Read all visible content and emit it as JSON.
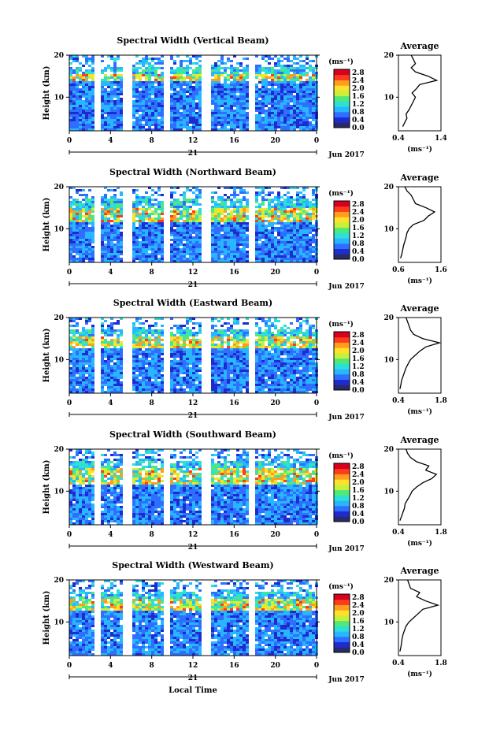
{
  "figure": {
    "xlabel_bottom": "Local Time",
    "colorbar_unit": "(ms⁻¹)",
    "colorbar_ticks": [
      "2.8",
      "2.4",
      "2.0",
      "1.6",
      "1.2",
      "0.8",
      "0.4",
      "0.0"
    ],
    "colorbar_colors": [
      "#2a2a66",
      "#1e2ccf",
      "#2f6fff",
      "#27b6ff",
      "#2de0d6",
      "#4fe87a",
      "#c8f03a",
      "#ffe02a",
      "#ff9d1e",
      "#ff3b1e",
      "#d8001e"
    ],
    "date_label": "21",
    "month_label": "Jun 2017",
    "avg_title": "Average",
    "avg_xlabel": "(ms⁻¹)",
    "ylabel": "Height (km)",
    "y_ticks": [
      "20",
      "10"
    ],
    "x_ticks": [
      "0",
      "4",
      "8",
      "12",
      "16",
      "20",
      "0"
    ]
  },
  "chart_data": [
    {
      "type": "heatmap",
      "title": "Spectral Width (Vertical Beam)",
      "xlabel": "Local Time",
      "ylabel": "Height (km)",
      "xlim": [
        0,
        24
      ],
      "ylim": [
        2,
        20
      ],
      "colorbar": {
        "label": "(ms⁻¹)",
        "range": [
          0.0,
          2.8
        ]
      },
      "data_gaps_hours": [
        [
          2.6,
          3.0
        ],
        [
          5.2,
          5.4
        ],
        [
          5.8,
          6.0
        ],
        [
          9.3,
          9.7
        ],
        [
          13.1,
          13.5
        ],
        [
          17.6,
          17.9
        ]
      ],
      "high_layer_km": [
        14,
        16
      ],
      "average_profile": {
        "title": "Average",
        "xlabel": "(ms⁻¹)",
        "xlim": [
          0.4,
          1.4
        ],
        "x_ticks": [
          "0.4",
          "1.4"
        ],
        "height_km": [
          3,
          4,
          5,
          6,
          7,
          8,
          9,
          10,
          11,
          12,
          13,
          14,
          15,
          16,
          17,
          18,
          19,
          20
        ],
        "width": [
          0.5,
          0.55,
          0.6,
          0.58,
          0.65,
          0.7,
          0.75,
          0.8,
          0.72,
          0.82,
          0.9,
          1.3,
          1.1,
          0.8,
          0.7,
          0.8,
          0.75,
          0.7
        ]
      }
    },
    {
      "type": "heatmap",
      "title": "Spectral Width (Northward Beam)",
      "xlabel": "Local Time",
      "ylabel": "Height (km)",
      "xlim": [
        0,
        24
      ],
      "ylim": [
        2,
        20
      ],
      "colorbar": {
        "label": "(ms⁻¹)",
        "range": [
          0.0,
          2.8
        ]
      },
      "data_gaps_hours": [
        [
          2.6,
          3.0
        ],
        [
          5.2,
          5.4
        ],
        [
          5.8,
          6.0
        ],
        [
          9.3,
          9.7
        ],
        [
          13.1,
          13.5
        ],
        [
          17.6,
          17.9
        ]
      ],
      "high_layer_km": [
        12,
        15
      ],
      "average_profile": {
        "title": "Average",
        "xlabel": "(ms⁻¹)",
        "xlim": [
          0.6,
          1.6
        ],
        "x_ticks": [
          "0.6",
          "1.6"
        ],
        "height_km": [
          3,
          4,
          5,
          6,
          7,
          8,
          9,
          10,
          11,
          12,
          13,
          14,
          15,
          16,
          17,
          18,
          19,
          20
        ],
        "width": [
          0.65,
          0.68,
          0.7,
          0.72,
          0.75,
          0.78,
          0.8,
          0.85,
          0.95,
          1.2,
          1.3,
          1.45,
          1.25,
          1.0,
          0.95,
          0.9,
          0.8,
          0.75
        ]
      }
    },
    {
      "type": "heatmap",
      "title": "Spectral Width (Eastward Beam)",
      "xlabel": "Local Time",
      "ylabel": "Height (km)",
      "xlim": [
        0,
        24
      ],
      "ylim": [
        2,
        20
      ],
      "colorbar": {
        "label": "(ms⁻¹)",
        "range": [
          0.0,
          2.8
        ]
      },
      "data_gaps_hours": [
        [
          2.6,
          3.0
        ],
        [
          5.2,
          5.4
        ],
        [
          5.8,
          6.0
        ],
        [
          9.3,
          9.7
        ],
        [
          13.1,
          13.5
        ],
        [
          17.6,
          17.9
        ]
      ],
      "high_layer_km": [
        13,
        16
      ],
      "average_profile": {
        "title": "Average",
        "xlabel": "(ms⁻¹)",
        "xlim": [
          0.4,
          1.8
        ],
        "x_ticks": [
          "0.4",
          "1.8"
        ],
        "height_km": [
          3,
          4,
          5,
          6,
          7,
          8,
          9,
          10,
          11,
          12,
          13,
          14,
          15,
          16,
          17,
          18,
          19,
          20
        ],
        "width": [
          0.45,
          0.48,
          0.5,
          0.55,
          0.6,
          0.65,
          0.72,
          0.8,
          0.95,
          1.1,
          1.3,
          1.75,
          1.2,
          0.9,
          0.8,
          0.75,
          0.7,
          0.65
        ]
      }
    },
    {
      "type": "heatmap",
      "title": "Spectral Width (Southward Beam)",
      "xlabel": "Local Time",
      "ylabel": "Height (km)",
      "xlim": [
        0,
        24
      ],
      "ylim": [
        2,
        20
      ],
      "colorbar": {
        "label": "(ms⁻¹)",
        "range": [
          0.0,
          2.8
        ]
      },
      "data_gaps_hours": [
        [
          2.6,
          3.0
        ],
        [
          5.2,
          5.4
        ],
        [
          5.8,
          6.0
        ],
        [
          9.3,
          9.7
        ],
        [
          13.1,
          13.5
        ],
        [
          17.6,
          17.9
        ]
      ],
      "high_layer_km": [
        12,
        16
      ],
      "average_profile": {
        "title": "Average",
        "xlabel": "(ms⁻¹)",
        "xlim": [
          0.4,
          1.8
        ],
        "x_ticks": [
          "0.4",
          "1.8"
        ],
        "height_km": [
          3,
          4,
          5,
          6,
          7,
          8,
          9,
          10,
          11,
          12,
          13,
          14,
          15,
          16,
          17,
          18,
          19,
          20
        ],
        "width": [
          0.45,
          0.5,
          0.55,
          0.6,
          0.62,
          0.7,
          0.78,
          0.85,
          1.0,
          1.2,
          1.5,
          1.65,
          1.3,
          1.4,
          1.0,
          0.8,
          0.7,
          0.65
        ]
      }
    },
    {
      "type": "heatmap",
      "title": "Spectral Width (Westward Beam)",
      "xlabel": "Local Time",
      "ylabel": "Height (km)",
      "xlim": [
        0,
        24
      ],
      "ylim": [
        2,
        20
      ],
      "colorbar": {
        "label": "(ms⁻¹)",
        "range": [
          0.0,
          2.8
        ]
      },
      "data_gaps_hours": [
        [
          2.6,
          3.0
        ],
        [
          5.2,
          5.4
        ],
        [
          5.8,
          6.0
        ],
        [
          9.3,
          9.7
        ],
        [
          13.1,
          13.5
        ],
        [
          17.6,
          17.9
        ]
      ],
      "high_layer_km": [
        13,
        16
      ],
      "average_profile": {
        "title": "Average",
        "xlabel": "(ms⁻¹)",
        "xlim": [
          0.4,
          1.8
        ],
        "x_ticks": [
          "0.4",
          "1.8"
        ],
        "height_km": [
          3,
          4,
          5,
          6,
          7,
          8,
          9,
          10,
          11,
          12,
          13,
          14,
          15,
          16,
          17,
          18,
          19,
          20
        ],
        "width": [
          0.45,
          0.48,
          0.5,
          0.52,
          0.55,
          0.6,
          0.65,
          0.75,
          0.9,
          1.05,
          1.2,
          1.7,
          1.3,
          1.0,
          1.1,
          0.8,
          0.75,
          0.7
        ]
      }
    }
  ]
}
